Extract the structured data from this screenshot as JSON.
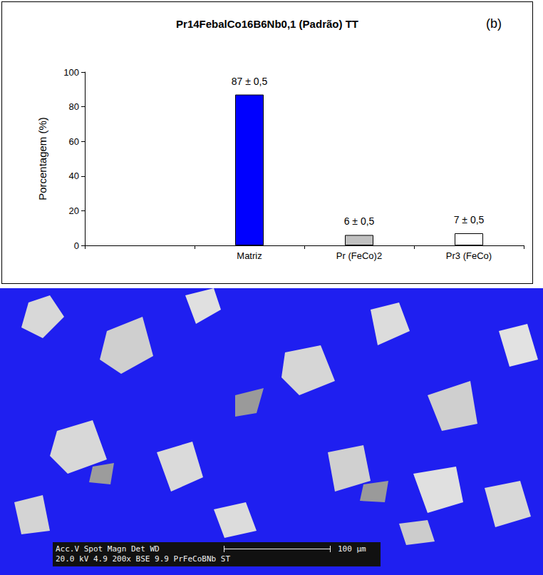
{
  "chart_data": {
    "type": "bar",
    "title": "Pr14FebalCo16B6Nb0,1 (Padrão) TT",
    "panel_label": "(b)",
    "y_label": "Porcentagem (%)",
    "categories": [
      null,
      "Matriz",
      "Pr (FeCo)2",
      "Pr3 (FeCo)"
    ],
    "values": [
      null,
      87,
      6,
      7
    ],
    "value_labels": [
      null,
      "87 ± 0,5",
      "6 ± 0,5",
      "7 ± 0,5"
    ],
    "colors": [
      null,
      "#0000ff",
      "#c0c0c0",
      "#ffffff"
    ],
    "ylim": [
      0,
      100
    ],
    "yticks": [
      0,
      20,
      40,
      60,
      80,
      100
    ],
    "grid": false,
    "data_labels": true
  },
  "micrograph": {
    "info_header": [
      "Acc.V",
      "Spot",
      "Magn",
      "Det",
      "WD"
    ],
    "info_values": [
      "20.0 kV",
      "4.9",
      "200x",
      "BSE",
      "9.9",
      "PrFeCoBNb ST"
    ],
    "scale_bar": "100 µm"
  }
}
